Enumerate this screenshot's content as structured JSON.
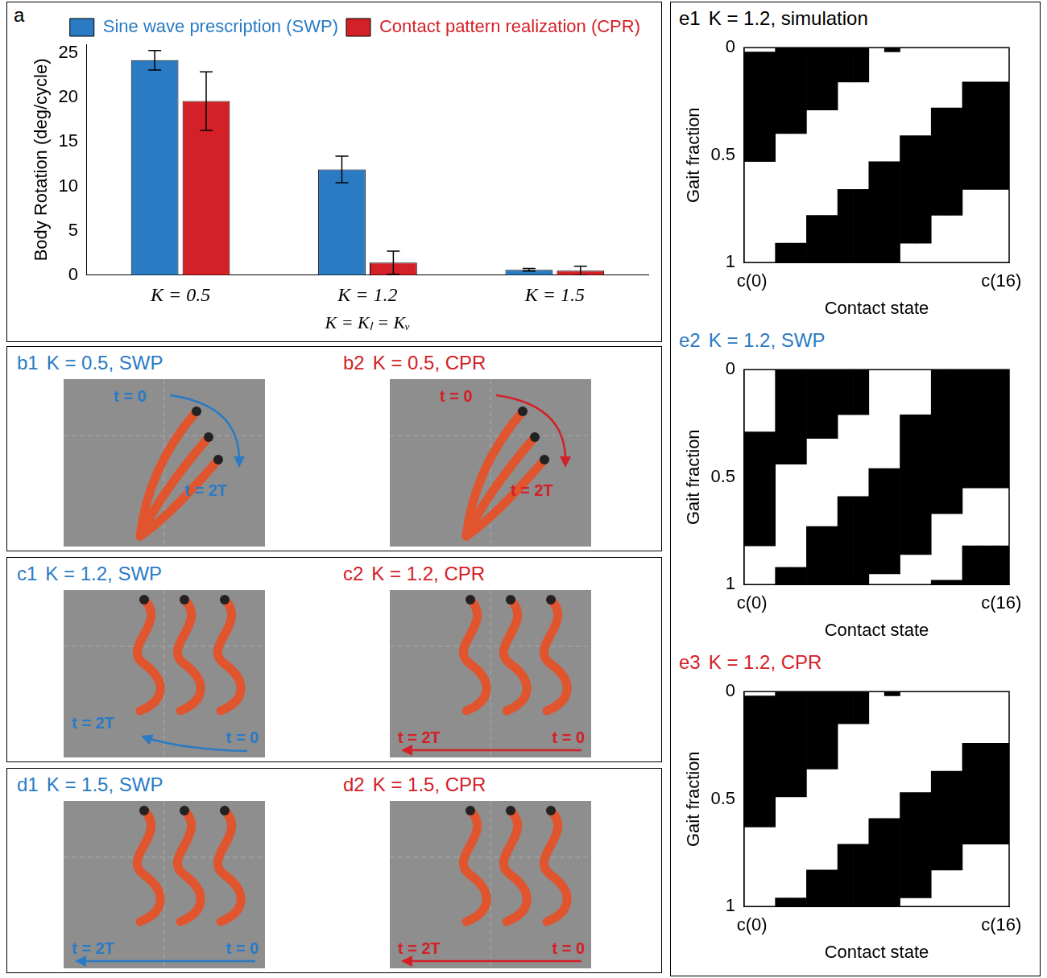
{
  "chart_data": [
    {
      "panel": "a",
      "type": "bar",
      "categories": [
        "K = 0.5",
        "K = 1.2",
        "K = 1.5"
      ],
      "x_label": "K = Kₗ = Kᵥ",
      "y_label": "Body Rotation (deg/cycle)",
      "series": [
        {
          "name": "Sine wave prescription (SWP)",
          "color": "#2a7bc4",
          "values": [
            24.2,
            11.9,
            0.6
          ],
          "errors": [
            1.1,
            1.5,
            0.15
          ]
        },
        {
          "name": "Contact pattern realization (CPR)",
          "color": "#d42027",
          "values": [
            19.6,
            1.4,
            0.5
          ],
          "errors": [
            3.3,
            1.3,
            0.5
          ]
        }
      ],
      "ylim": [
        0,
        26
      ],
      "yticks": [
        0,
        5,
        10,
        15,
        20,
        25
      ],
      "legend": "top-right",
      "grid": false
    },
    {
      "panel": "e1",
      "type": "contact_map",
      "title": "K = 1.2, simulation",
      "x_label": "Contact state",
      "y_label": "Gait fraction",
      "categories": [
        "c(0)",
        null,
        null,
        null,
        null,
        null,
        null,
        null,
        null,
        null,
        null,
        null,
        null,
        null,
        null,
        null,
        "c(16)"
      ],
      "contact_intervals": [
        [
          [
            0.02,
            0.53
          ]
        ],
        [
          [
            0.02,
            0.53
          ]
        ],
        [
          [
            0,
            0.4
          ],
          [
            0.91,
            1
          ]
        ],
        [
          [
            0,
            0.4
          ],
          [
            0.91,
            1
          ]
        ],
        [
          [
            0,
            0.29
          ],
          [
            0.78,
            1
          ]
        ],
        [
          [
            0,
            0.29
          ],
          [
            0.78,
            1
          ]
        ],
        [
          [
            0,
            0.16
          ],
          [
            0.66,
            1
          ]
        ],
        [
          [
            0,
            0.16
          ],
          [
            0.66,
            1
          ]
        ],
        [
          [
            0.53,
            1
          ]
        ],
        [
          [
            0,
            0.02
          ],
          [
            0.53,
            1
          ]
        ],
        [
          [
            0.41,
            0.91
          ]
        ],
        [
          [
            0.41,
            0.91
          ]
        ],
        [
          [
            0.28,
            0.78
          ]
        ],
        [
          [
            0.28,
            0.78
          ]
        ],
        [
          [
            0.16,
            0.66
          ]
        ],
        [
          [
            0.16,
            0.66
          ]
        ],
        [
          [
            0.16,
            0.66
          ]
        ]
      ],
      "ylim": [
        0,
        1
      ],
      "yticks": [
        0,
        0.5,
        1
      ],
      "color": "#000000"
    },
    {
      "panel": "e2",
      "type": "contact_map",
      "title": "K = 1.2, SWP",
      "x_label": "Contact state",
      "y_label": "Gait fraction",
      "categories": [
        "c(0)",
        null,
        null,
        null,
        null,
        null,
        null,
        null,
        null,
        null,
        null,
        null,
        null,
        null,
        null,
        null,
        "c(16)"
      ],
      "contact_intervals": [
        [
          [
            0.29,
            0.82
          ]
        ],
        [
          [
            0.29,
            0.82
          ]
        ],
        [
          [
            0,
            0.44
          ],
          [
            0.92,
            1
          ]
        ],
        [
          [
            0,
            0.44
          ],
          [
            0.92,
            1
          ]
        ],
        [
          [
            0,
            0.32
          ],
          [
            0.73,
            1
          ]
        ],
        [
          [
            0,
            0.32
          ],
          [
            0.73,
            1
          ]
        ],
        [
          [
            0,
            0.21
          ],
          [
            0.59,
            1
          ]
        ],
        [
          [
            0,
            0.21
          ],
          [
            0.59,
            1
          ]
        ],
        [
          [
            0.46,
            0.95
          ]
        ],
        [
          [
            0.46,
            0.95
          ]
        ],
        [
          [
            0.21,
            0.86
          ]
        ],
        [
          [
            0.21,
            0.86
          ]
        ],
        [
          [
            0,
            0.67
          ],
          [
            0.98,
            1
          ]
        ],
        [
          [
            0,
            0.67
          ],
          [
            0.98,
            1
          ]
        ],
        [
          [
            0,
            0.55
          ],
          [
            0.82,
            1
          ]
        ],
        [
          [
            0,
            0.55
          ],
          [
            0.82,
            1
          ]
        ],
        [
          [
            0,
            0.55
          ],
          [
            0.82,
            1
          ]
        ]
      ],
      "ylim": [
        0,
        1
      ],
      "yticks": [
        0,
        0.5,
        1
      ],
      "color": "#000000"
    },
    {
      "panel": "e3",
      "type": "contact_map",
      "title": "K = 1.2, CPR",
      "x_label": "Contact state",
      "y_label": "Gait fraction",
      "categories": [
        "c(0)",
        null,
        null,
        null,
        null,
        null,
        null,
        null,
        null,
        null,
        null,
        null,
        null,
        null,
        null,
        null,
        "c(16)"
      ],
      "contact_intervals": [
        [
          [
            0.02,
            0.63
          ]
        ],
        [
          [
            0.02,
            0.63
          ]
        ],
        [
          [
            0,
            0.49
          ],
          [
            0.96,
            1
          ]
        ],
        [
          [
            0,
            0.49
          ],
          [
            0.96,
            1
          ]
        ],
        [
          [
            0,
            0.36
          ],
          [
            0.83,
            1
          ]
        ],
        [
          [
            0,
            0.36
          ],
          [
            0.83,
            1
          ]
        ],
        [
          [
            0,
            0.15
          ],
          [
            0.71,
            1
          ]
        ],
        [
          [
            0,
            0.15
          ],
          [
            0.71,
            1
          ]
        ],
        [
          [
            0.59,
            1
          ]
        ],
        [
          [
            0,
            0.02
          ],
          [
            0.59,
            1
          ]
        ],
        [
          [
            0.47,
            0.96
          ]
        ],
        [
          [
            0.47,
            0.96
          ]
        ],
        [
          [
            0.37,
            0.83
          ]
        ],
        [
          [
            0.37,
            0.83
          ]
        ],
        [
          [
            0.24,
            0.71
          ]
        ],
        [
          [
            0.24,
            0.71
          ]
        ],
        [
          [
            0.24,
            0.71
          ]
        ]
      ],
      "ylim": [
        0,
        1
      ],
      "yticks": [
        0,
        0.5,
        1
      ],
      "color": "#000000"
    }
  ],
  "photo_panels": [
    {
      "panel": "b1",
      "title": "K = 0.5, SWP",
      "start_label": "t = 0",
      "end_label": "t = 2T"
    },
    {
      "panel": "b2",
      "title": "K = 0.5, CPR",
      "start_label": "t = 0",
      "end_label": "t = 2T"
    },
    {
      "panel": "c1",
      "title": "K = 1.2, SWP",
      "start_label": "t = 0",
      "end_label": "t = 2T"
    },
    {
      "panel": "c2",
      "title": "K = 1.2, CPR",
      "start_label": "t = 0",
      "end_label": "t = 2T"
    },
    {
      "panel": "d1",
      "title": "K = 1.5, SWP",
      "start_label": "t = 0",
      "end_label": "t = 2T"
    },
    {
      "panel": "d2",
      "title": "K = 1.5, CPR",
      "start_label": "t = 0",
      "end_label": "t = 2T"
    }
  ]
}
